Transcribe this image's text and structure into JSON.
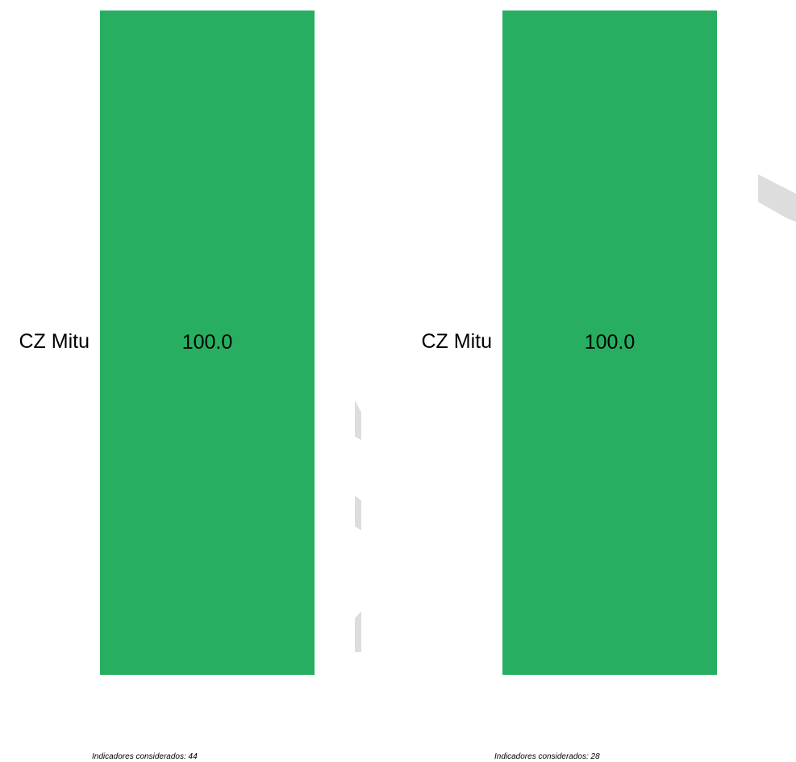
{
  "colors": {
    "cell_fill": "#27ae60",
    "background": "#ffffff",
    "decor": "#dddddd"
  },
  "chart_data": [
    {
      "type": "heatmap",
      "rows": [
        "CZ Mitu"
      ],
      "values": [
        [
          100.0
        ]
      ],
      "cell_labels": [
        "100.0"
      ],
      "caption": "Indicadores considerados: 44"
    },
    {
      "type": "heatmap",
      "rows": [
        "CZ Mitu"
      ],
      "values": [
        [
          100.0
        ]
      ],
      "cell_labels": [
        "100.0"
      ],
      "caption": "Indicadores considerados: 28"
    }
  ]
}
